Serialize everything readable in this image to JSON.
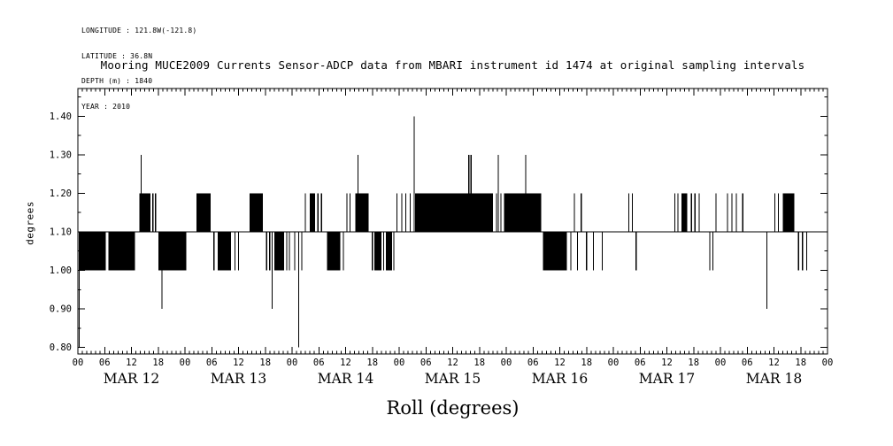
{
  "meta": {
    "lines": [
      "LONGITUDE : 121.8W(-121.8)",
      "LATITUDE : 36.8N",
      "DEPTH (m) : 1840",
      "YEAR : 2010"
    ]
  },
  "title": "Mooring MUCE2009 Currents Sensor-ADCP data from MBARI instrument id 1474 at original sampling intervals",
  "x_axis_title": "Roll (degrees)",
  "y_axis_title": "degrees",
  "colors": {
    "ink": "#000000",
    "background": "#ffffff"
  },
  "chart_data": {
    "type": "line",
    "title": "Mooring MUCE2009 Currents Sensor-ADCP data from MBARI instrument id 1474 at original sampling intervals",
    "xlabel": "Roll (degrees)",
    "ylabel": "degrees",
    "x_range_hours": [
      0,
      168
    ],
    "ylim": [
      0.783,
      1.472
    ],
    "yticks": [
      0.8,
      0.9,
      1.0,
      1.1,
      1.2,
      1.3,
      1.4
    ],
    "y_minor_step": 0.05,
    "x_major_step_hours": 6,
    "x_minor_step_hours": 1,
    "hour_tick_labels": [
      "00",
      "06",
      "12",
      "18"
    ],
    "day_labels": [
      "MAR 12",
      "MAR 13",
      "MAR 14",
      "MAR 15",
      "MAR 16",
      "MAR 17",
      "MAR 18"
    ],
    "grid": false,
    "baseline_value": 1.1,
    "solid_bands": [
      [
        0.3,
        6.2,
        1.0,
        1.1
      ],
      [
        6.8,
        12.8,
        1.0,
        1.1
      ],
      [
        13.8,
        16.3,
        1.1,
        1.2
      ],
      [
        18.0,
        24.3,
        1.0,
        1.1
      ],
      [
        26.6,
        29.8,
        1.1,
        1.2
      ],
      [
        31.3,
        34.3,
        1.0,
        1.1
      ],
      [
        38.5,
        41.5,
        1.1,
        1.2
      ],
      [
        44.0,
        46.2,
        1.0,
        1.1
      ],
      [
        52.0,
        53.2,
        1.1,
        1.2
      ],
      [
        55.8,
        58.8,
        1.0,
        1.1
      ],
      [
        62.2,
        65.2,
        1.1,
        1.2
      ],
      [
        66.4,
        68.0,
        1.0,
        1.1
      ],
      [
        69.0,
        70.4,
        1.0,
        1.1
      ],
      [
        75.6,
        93.0,
        1.1,
        1.2
      ],
      [
        95.5,
        103.8,
        1.1,
        1.2
      ],
      [
        104.2,
        109.6,
        1.0,
        1.1
      ],
      [
        135.3,
        136.6,
        1.1,
        1.2
      ],
      [
        158.0,
        160.6,
        1.1,
        1.2
      ]
    ],
    "vertical_lines": [
      [
        16.8,
        1.1,
        1.2
      ],
      [
        17.4,
        1.1,
        1.2
      ],
      [
        30.5,
        1.0,
        1.1
      ],
      [
        35.2,
        1.0,
        1.1
      ],
      [
        36.0,
        1.0,
        1.1
      ],
      [
        42.3,
        1.0,
        1.1
      ],
      [
        43.0,
        1.0,
        1.1
      ],
      [
        46.8,
        1.0,
        1.1
      ],
      [
        47.4,
        1.0,
        1.1
      ],
      [
        48.6,
        1.0,
        1.1
      ],
      [
        50.2,
        1.0,
        1.1
      ],
      [
        51.0,
        1.1,
        1.2
      ],
      [
        53.8,
        1.1,
        1.2
      ],
      [
        54.6,
        1.1,
        1.2
      ],
      [
        59.5,
        1.0,
        1.1
      ],
      [
        60.3,
        1.1,
        1.2
      ],
      [
        61.0,
        1.1,
        1.2
      ],
      [
        66.0,
        1.0,
        1.1
      ],
      [
        68.5,
        1.0,
        1.1
      ],
      [
        70.8,
        1.0,
        1.1
      ],
      [
        71.5,
        1.1,
        1.2
      ],
      [
        72.6,
        1.1,
        1.2
      ],
      [
        73.5,
        1.1,
        1.2
      ],
      [
        74.5,
        1.1,
        1.2
      ],
      [
        93.8,
        1.1,
        1.2
      ],
      [
        94.8,
        1.1,
        1.2
      ],
      [
        110.5,
        1.0,
        1.1
      ],
      [
        111.3,
        1.1,
        1.2
      ],
      [
        112.0,
        1.0,
        1.1
      ],
      [
        112.8,
        1.1,
        1.2
      ],
      [
        114.0,
        1.0,
        1.1
      ],
      [
        115.5,
        1.0,
        1.1
      ],
      [
        117.5,
        1.0,
        1.1
      ],
      [
        123.5,
        1.1,
        1.2
      ],
      [
        124.3,
        1.1,
        1.2
      ],
      [
        125.1,
        1.0,
        1.1
      ],
      [
        133.8,
        1.1,
        1.2
      ],
      [
        134.5,
        1.1,
        1.2
      ],
      [
        137.5,
        1.1,
        1.2
      ],
      [
        138.3,
        1.1,
        1.2
      ],
      [
        139.2,
        1.1,
        1.2
      ],
      [
        141.6,
        1.0,
        1.1
      ],
      [
        142.3,
        1.0,
        1.1
      ],
      [
        143.0,
        1.1,
        1.2
      ],
      [
        145.6,
        1.1,
        1.2
      ],
      [
        146.6,
        1.1,
        1.2
      ],
      [
        147.6,
        1.1,
        1.2
      ],
      [
        149.0,
        1.1,
        1.2
      ],
      [
        156.2,
        1.1,
        1.2
      ],
      [
        157.0,
        1.1,
        1.2
      ],
      [
        161.5,
        1.0,
        1.1
      ],
      [
        162.4,
        1.0,
        1.1
      ],
      [
        163.3,
        1.0,
        1.1
      ]
    ],
    "spikes": [
      [
        0.3,
        0.8
      ],
      [
        14.2,
        1.3
      ],
      [
        18.8,
        0.9
      ],
      [
        43.5,
        0.9
      ],
      [
        49.5,
        0.8
      ],
      [
        62.8,
        1.3
      ],
      [
        75.4,
        1.4
      ],
      [
        87.6,
        1.3
      ],
      [
        87.9,
        1.3
      ],
      [
        88.2,
        1.3
      ],
      [
        94.2,
        1.3
      ],
      [
        100.4,
        1.3
      ],
      [
        154.4,
        0.9
      ]
    ]
  }
}
